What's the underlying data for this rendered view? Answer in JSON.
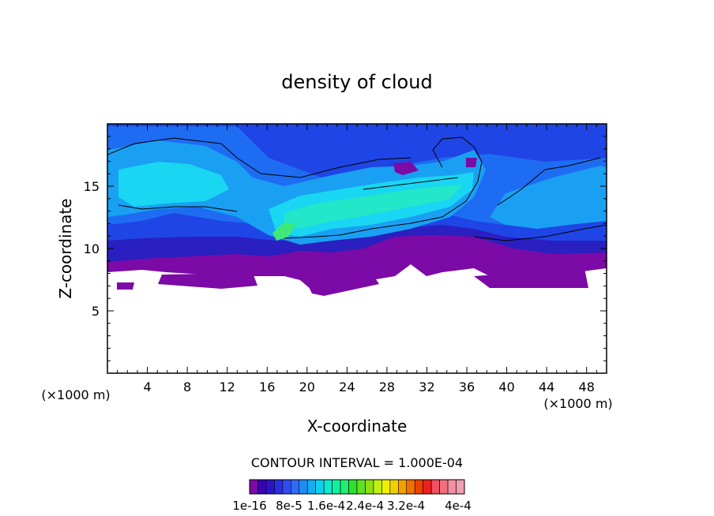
{
  "chart_data": {
    "type": "heatmap",
    "title": "density of cloud",
    "xlabel": "X-coordinate",
    "ylabel": "Z-coordinate",
    "x_unit_left": "(×1000 m)",
    "x_unit_right": "(×1000 m)",
    "xlim": [
      0,
      50
    ],
    "ylim": [
      0,
      20
    ],
    "x_ticks": [
      4,
      8,
      12,
      16,
      20,
      24,
      28,
      32,
      36,
      40,
      44,
      48
    ],
    "y_ticks": [
      5,
      10,
      15
    ],
    "contour_interval_label": "CONTOUR INTERVAL = 1.000E-04",
    "colorbar": {
      "tick_labels": [
        "1e-16",
        "8e-5",
        "1.6e-4",
        "2.4e-4",
        "3.2e-4",
        "4e-4"
      ],
      "colors": [
        "#7b0aa6",
        "#3b00b0",
        "#2b14c8",
        "#2a2ee0",
        "#2f4cf0",
        "#2f6cf5",
        "#1f8cf5",
        "#10b0f0",
        "#10d0f0",
        "#10e8d0",
        "#10f0a0",
        "#20f070",
        "#30e030",
        "#60e020",
        "#90e010",
        "#c0f010",
        "#f0f000",
        "#f0d000",
        "#f0a000",
        "#f07000",
        "#f04000",
        "#f02020",
        "#f05060",
        "#f07080",
        "#f090a0",
        "#f0a0b0"
      ]
    },
    "field_colors": {
      "purple": "#7b0aa6",
      "navy": "#2a1fc0",
      "blue": "#1f45e6",
      "mid_blue": "#1e6cf2",
      "light_blue": "#1aa0f2",
      "cyan": "#19d6f2",
      "teal": "#24e6c8",
      "green": "#3fe878"
    }
  }
}
